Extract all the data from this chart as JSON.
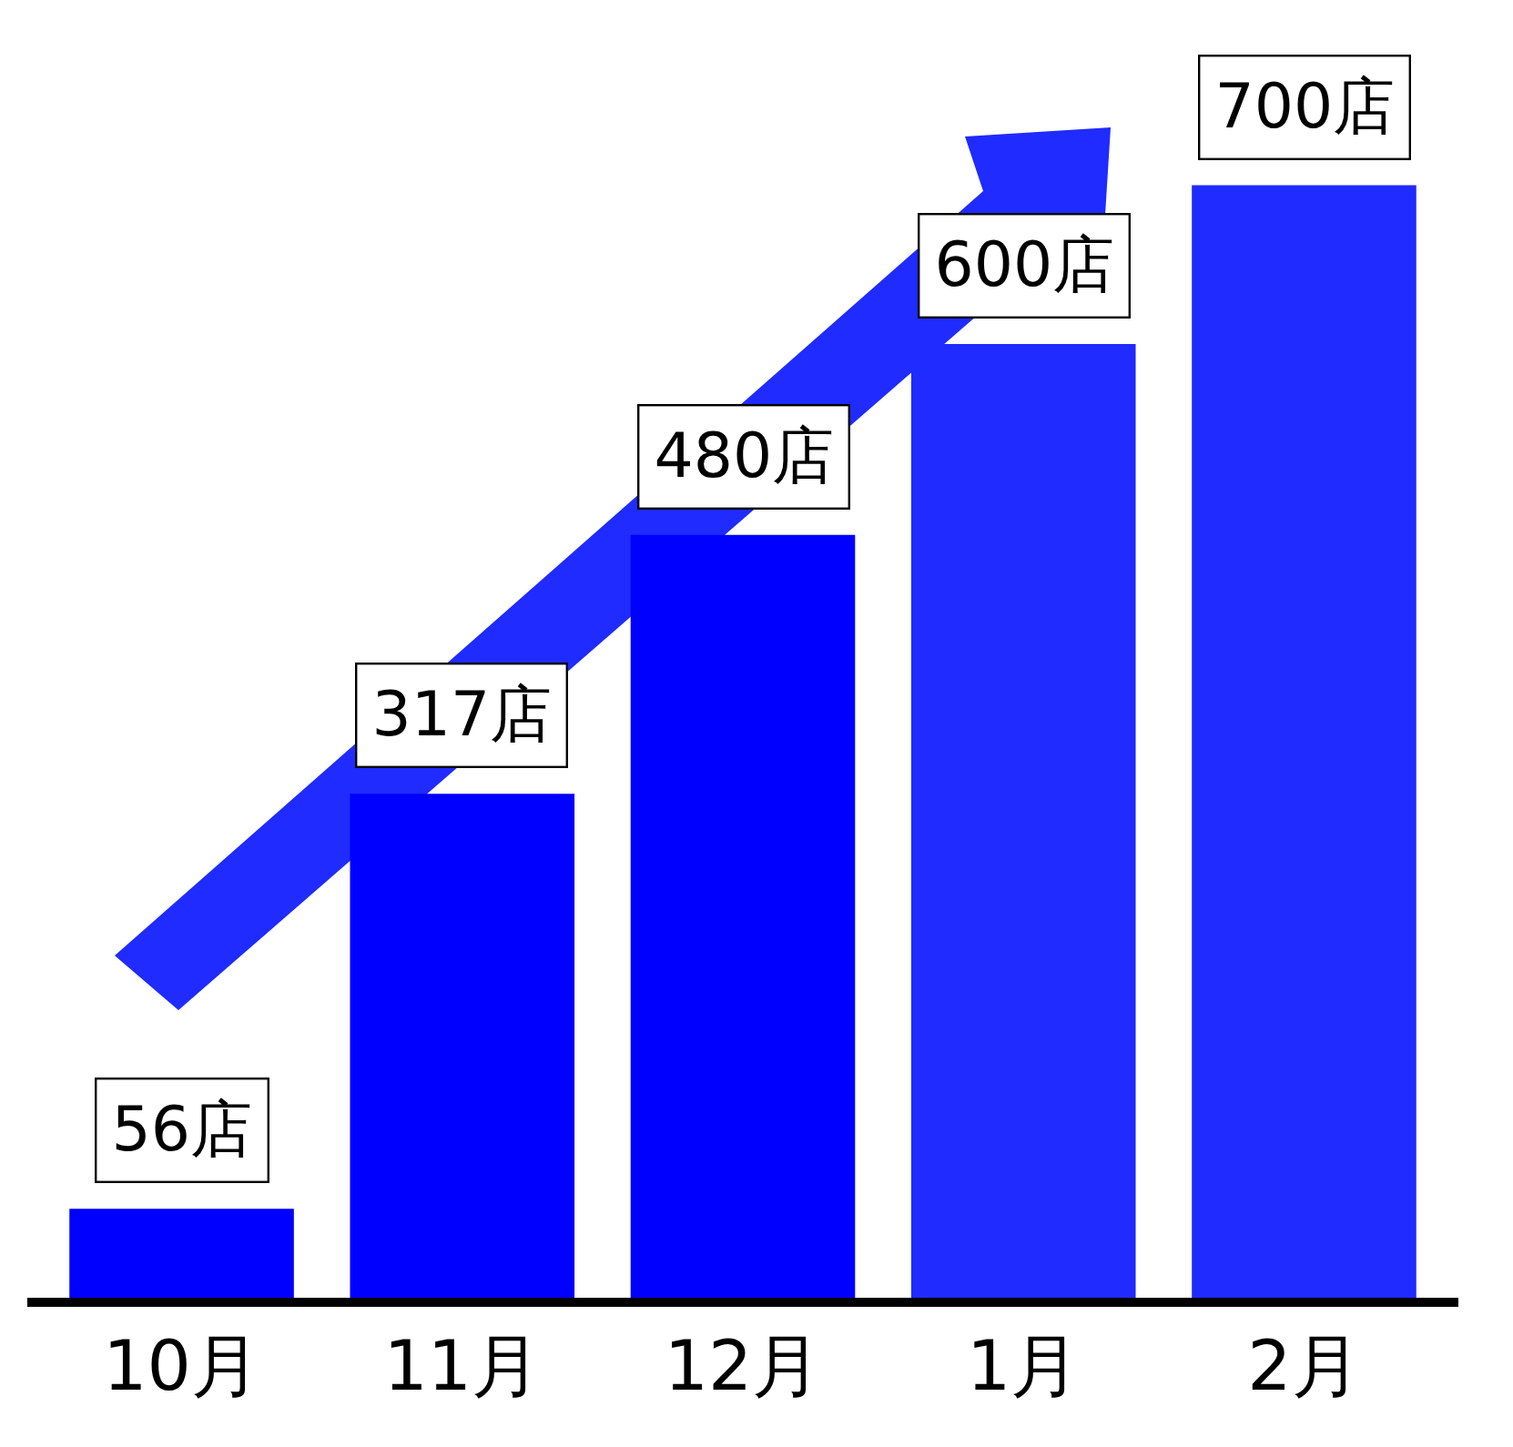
{
  "chart_data": {
    "type": "bar",
    "categories": [
      "10月",
      "11月",
      "12月",
      "1月",
      "2月"
    ],
    "values": [
      56,
      317,
      480,
      600,
      700
    ],
    "colors": [
      "#0000ff",
      "#0000ff",
      "#0000ff",
      "#1f2bff",
      "#1f2bff"
    ],
    "value_labels": [
      "56店",
      "317店",
      "480店",
      "600店",
      "700店"
    ],
    "tick_labels": "x",
    "grid": false,
    "legend": false
  }
}
